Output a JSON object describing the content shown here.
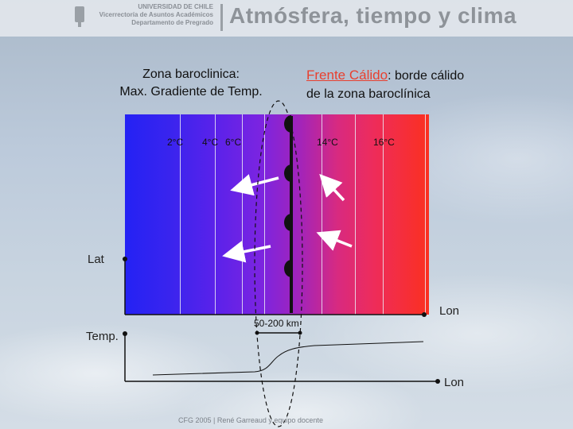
{
  "header": {
    "university_lines": [
      "UNIVERSIDAD DE CHILE",
      "Vicerrectoría de Asuntos Académicos",
      "Departamento de Pregrado"
    ],
    "title": "Atmósfera, tiempo y clima"
  },
  "headings": {
    "left_line1": "Zona baroclinica:",
    "left_line2": "Max. Gradiente de Temp.",
    "right_red": "Frente Cálido",
    "right_rest1": ": borde cálido",
    "right_line2": "de la zona baroclínica"
  },
  "isotherm_labels": [
    "2°C",
    "4°C",
    "6°C",
    "14°C",
    "16°C"
  ],
  "axes": {
    "lat": "Lat",
    "lon_map": "Lon",
    "temp": "Temp.",
    "lon_profile": "Lon"
  },
  "distance_label": "50-200 km",
  "footer": "CFG 2005  |  René Garreaud y equipo docente",
  "colors": {
    "cold": "#2422f4",
    "warm": "#fb3020",
    "front_line": "#111111",
    "title_red": "#e8402f"
  }
}
